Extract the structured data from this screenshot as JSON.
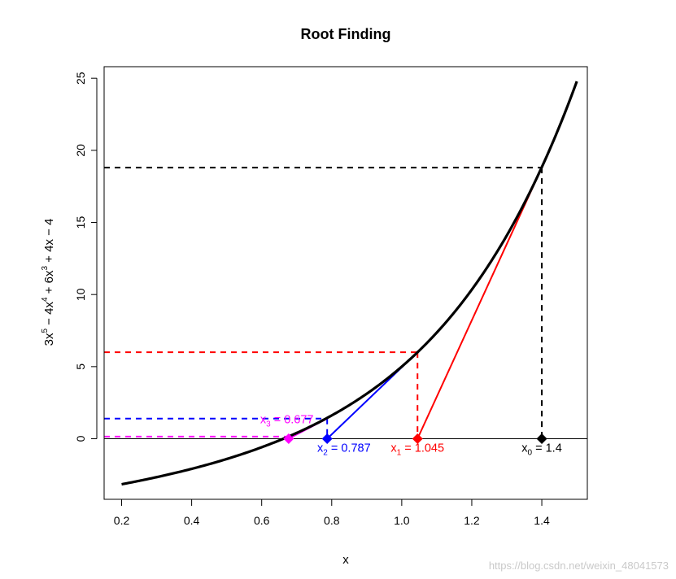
{
  "chart_data": {
    "type": "line",
    "title": "Root Finding",
    "xlabel": "x",
    "ylabel_parts": [
      "3x",
      "5",
      " − 4x",
      "4",
      " + 6x",
      "3",
      " + 4x − 4"
    ],
    "xlim": [
      0.15,
      1.53
    ],
    "ylim": [
      -4.2,
      25.8
    ],
    "xticks": [
      0.2,
      0.4,
      0.6,
      0.8,
      1.0,
      1.2,
      1.4
    ],
    "xtick_labels": [
      "0.2",
      "0.4",
      "0.6",
      "0.8",
      "1.0",
      "1.2",
      "1.4"
    ],
    "yticks": [
      0,
      5,
      10,
      15,
      20,
      25
    ],
    "ytick_labels": [
      "0",
      "5",
      "10",
      "15",
      "20",
      "25"
    ],
    "function": {
      "coefficients_desc": [
        3,
        -4,
        6,
        0,
        4,
        -4
      ],
      "x_range": [
        0.2,
        1.5
      ],
      "color": "#000000"
    },
    "zero_line": true,
    "iterations": [
      {
        "x": 1.4,
        "fx": 18.8,
        "color": "#000000",
        "label_sub": "0",
        "label_value": " = 1.4",
        "label_x": 1.4,
        "label_y": -0.9
      },
      {
        "x": 1.045,
        "fx": 6.0,
        "color": "#ff0000",
        "label_sub": "1",
        "label_value": " = 1.045",
        "label_x": 1.045,
        "label_y": -0.9
      },
      {
        "x": 0.787,
        "fx": 1.4,
        "color": "#0000ff",
        "label_sub": "2",
        "label_value": " = 0.787",
        "label_x": 0.835,
        "label_y": -0.9
      },
      {
        "x": 0.677,
        "fx": 0.15,
        "color": "#ff00ff",
        "label_sub": "3",
        "label_value": " = 0.677",
        "label_x": 0.672,
        "label_y": 1.07
      }
    ],
    "label_prefix": "x"
  },
  "watermark": "https://blog.csdn.net/weixin_48041573"
}
